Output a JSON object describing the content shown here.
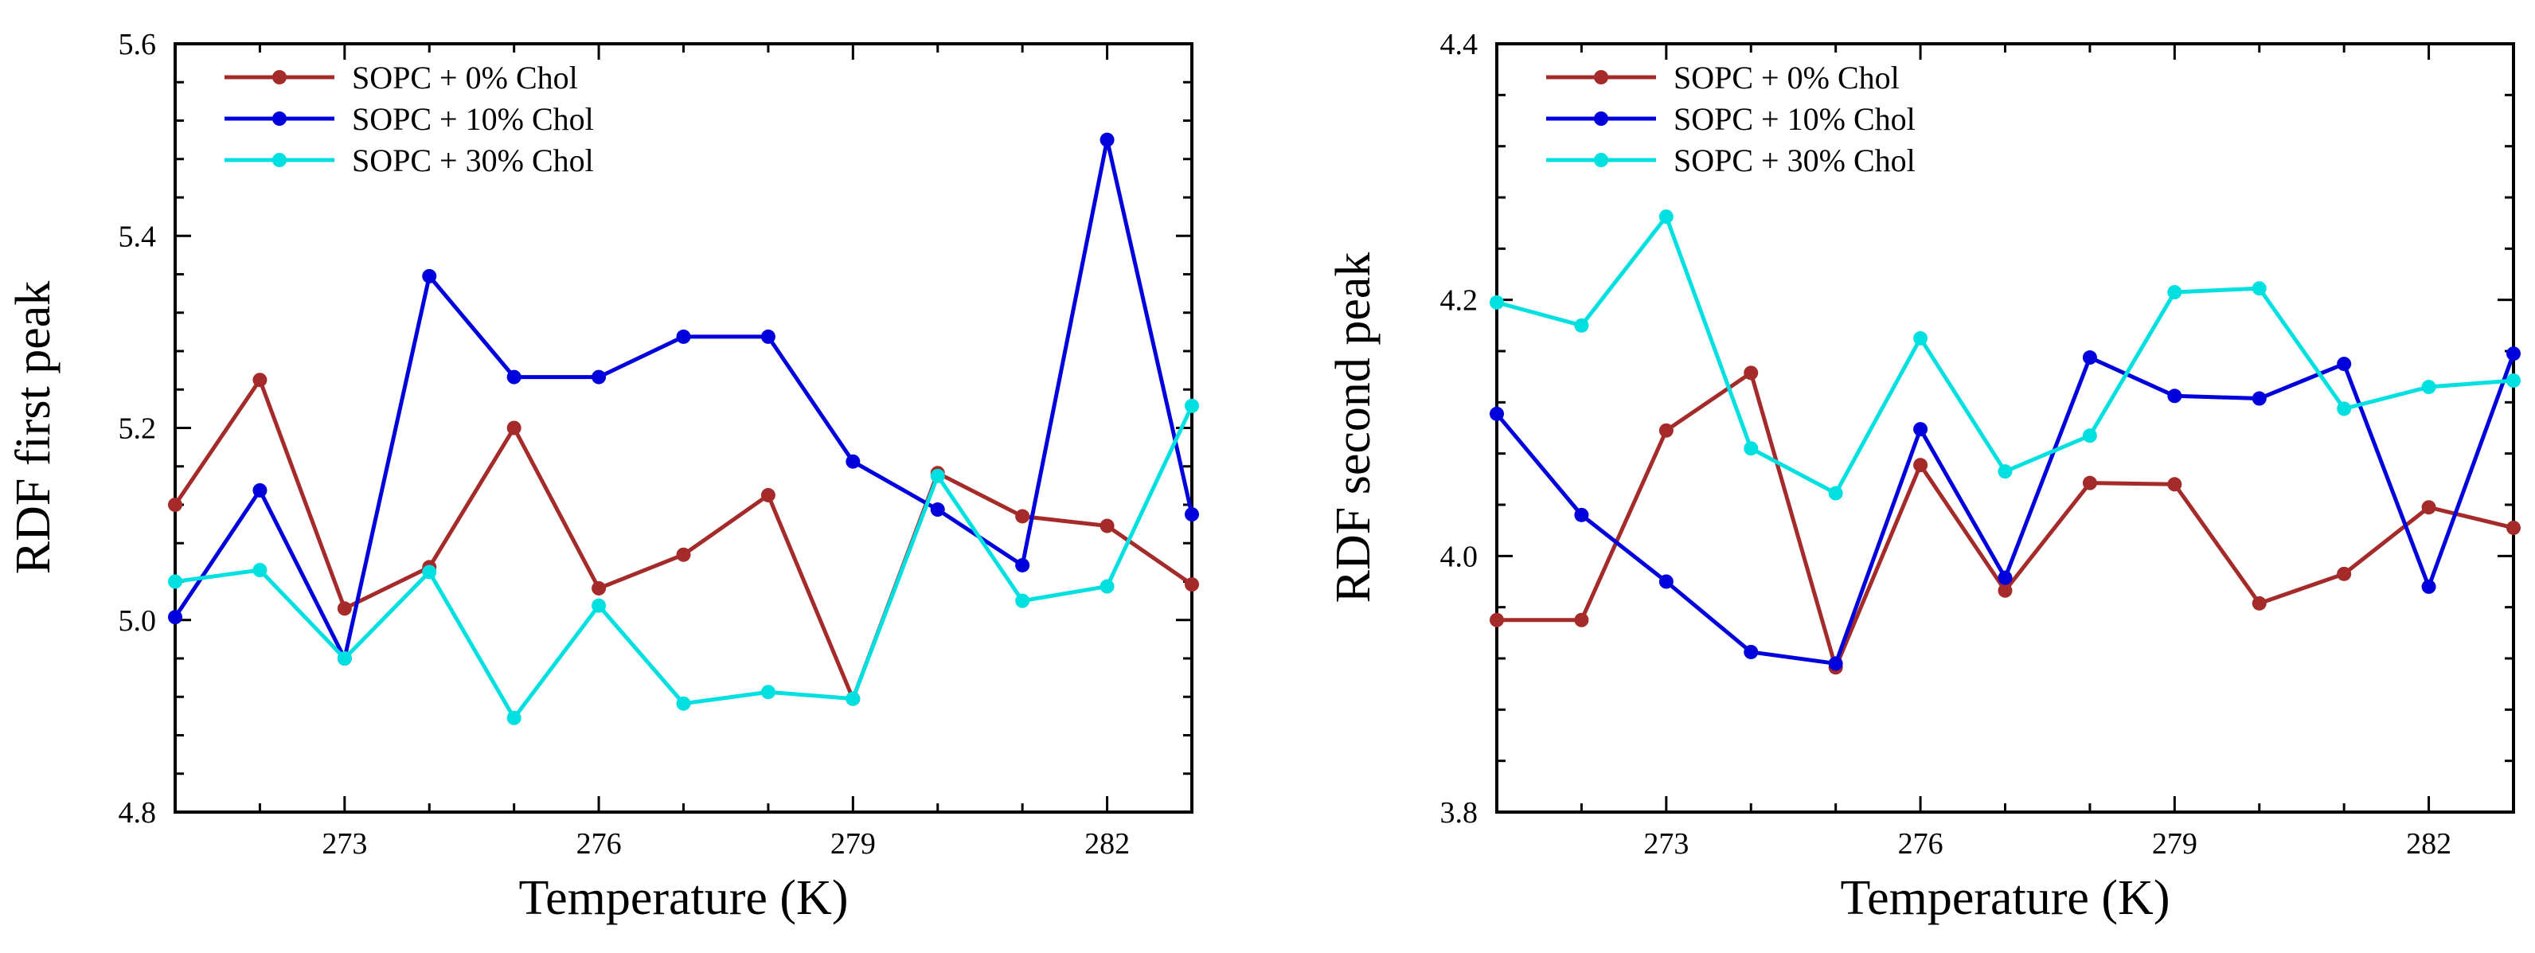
{
  "chart_data": [
    {
      "type": "line",
      "title": "",
      "xlabel": "Temperature (K)",
      "ylabel": "RDF first peak",
      "xlim": [
        271,
        283
      ],
      "ylim": [
        4.8,
        5.6
      ],
      "xticks": [
        273,
        276,
        279,
        282
      ],
      "xtick_labels": [
        "273",
        "276",
        "279",
        "282"
      ],
      "yticks": [
        4.8,
        5.0,
        5.2,
        5.4,
        5.6
      ],
      "ytick_labels": [
        "4.8",
        "5.0",
        "5.2",
        "5.4",
        "5.6"
      ],
      "legend_position": "top-left",
      "x": [
        271,
        272,
        273,
        274,
        275,
        276,
        277,
        278,
        279,
        280,
        281,
        282,
        283
      ],
      "series": [
        {
          "name": "SOPC + 0% Chol",
          "color": "#a52a2a",
          "values": [
            5.12,
            5.25,
            5.012,
            5.055,
            5.2,
            5.033,
            5.068,
            5.13,
            4.918,
            5.153,
            5.108,
            5.098,
            5.037
          ]
        },
        {
          "name": "SOPC + 10% Chol",
          "color": "#0000dd",
          "values": [
            5.003,
            5.135,
            4.96,
            5.358,
            5.253,
            5.253,
            5.295,
            5.295,
            5.165,
            5.115,
            5.057,
            5.5,
            5.11
          ]
        },
        {
          "name": "SOPC + 30% Chol",
          "color": "#00e0e0",
          "values": [
            5.04,
            5.052,
            4.96,
            5.05,
            4.898,
            5.015,
            4.913,
            4.925,
            4.918,
            5.15,
            5.02,
            5.035,
            5.223
          ]
        }
      ]
    },
    {
      "type": "line",
      "title": "",
      "xlabel": "Temperature (K)",
      "ylabel": "RDF second peak",
      "xlim": [
        271,
        283
      ],
      "ylim": [
        3.8,
        4.4
      ],
      "xticks": [
        273,
        276,
        279,
        282
      ],
      "xtick_labels": [
        "273",
        "276",
        "279",
        "282"
      ],
      "yticks": [
        3.8,
        4.0,
        4.2,
        4.4
      ],
      "ytick_labels": [
        "3.8",
        "4.0",
        "4.2",
        "4.4"
      ],
      "legend_position": "top-left",
      "x": [
        271,
        272,
        273,
        274,
        275,
        276,
        277,
        278,
        279,
        280,
        281,
        282,
        283
      ],
      "series": [
        {
          "name": "SOPC + 0% Chol",
          "color": "#a52a2a",
          "values": [
            3.95,
            3.95,
            4.098,
            4.143,
            3.913,
            4.071,
            3.973,
            4.057,
            4.056,
            3.963,
            3.986,
            4.038,
            4.022
          ]
        },
        {
          "name": "SOPC + 10% Chol",
          "color": "#0000dd",
          "values": [
            4.111,
            4.032,
            3.98,
            3.925,
            3.916,
            4.099,
            3.983,
            4.155,
            4.125,
            4.123,
            4.15,
            3.976,
            4.158
          ]
        },
        {
          "name": "SOPC + 30% Chol",
          "color": "#00e0e0",
          "values": [
            4.198,
            4.18,
            4.265,
            4.084,
            4.049,
            4.17,
            4.066,
            4.094,
            4.206,
            4.209,
            4.115,
            4.132,
            4.137
          ]
        }
      ]
    }
  ]
}
